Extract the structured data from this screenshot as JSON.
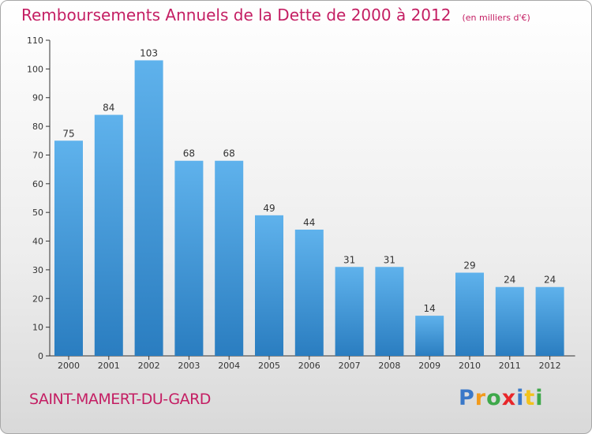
{
  "header": {
    "title": "Remboursements Annuels de la Dette de 2000 à 2012",
    "subtitle": "(en milliers d'€)"
  },
  "footer": {
    "town": "SAINT-MAMERT-DU-GARD",
    "logo": "Proxiti"
  },
  "colors": {
    "title": "#c41e63",
    "bar_top": "#5fb2ec",
    "bar_bottom": "#2a7dc0"
  },
  "chart_data": {
    "type": "bar",
    "title": "Remboursements Annuels de la Dette de 2000 à 2012",
    "categories": [
      "2000",
      "2001",
      "2002",
      "2003",
      "2004",
      "2005",
      "2006",
      "2007",
      "2008",
      "2009",
      "2010",
      "2011",
      "2012"
    ],
    "values": [
      75,
      84,
      103,
      68,
      68,
      49,
      44,
      31,
      31,
      14,
      29,
      24,
      24
    ],
    "ylim": [
      0,
      110
    ],
    "yticks": [
      0,
      10,
      20,
      30,
      40,
      50,
      60,
      70,
      80,
      90,
      100,
      110
    ],
    "xlabel": "",
    "ylabel": "",
    "grid": false,
    "data_labels": true
  }
}
